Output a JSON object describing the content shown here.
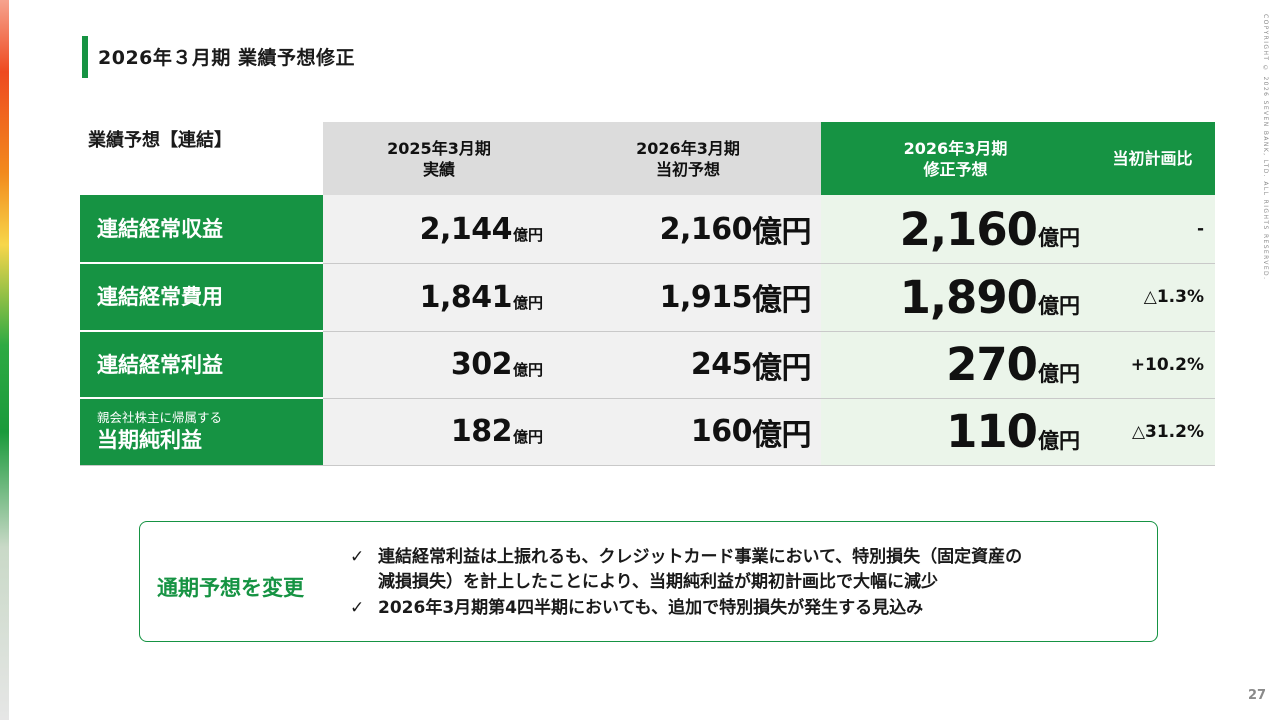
{
  "page": {
    "title": "2026年３月期 業績予想修正",
    "copyright": "COPYRIGHT © 2026 SEVEN BANK, LTD. ALL RIGHTS RESERVED.",
    "page_number": "27"
  },
  "table": {
    "caption": "業績予想【連結】",
    "headers": {
      "actual_2025": [
        "2025年3月期",
        "実績"
      ],
      "initial_2026": [
        "2026年3月期",
        "当初予想"
      ],
      "revised_2026": [
        "2026年3月期",
        "修正予想"
      ],
      "vs_initial": "当初計画比"
    },
    "unit": "億円",
    "rows": [
      {
        "label_sub": "",
        "label": "連結経常収益",
        "actual_2025": "2,144",
        "initial_2026": "2,160",
        "revised_2026": "2,160",
        "vs_initial": "-"
      },
      {
        "label_sub": "",
        "label": "連結経常費用",
        "actual_2025": "1,841",
        "initial_2026": "1,915",
        "revised_2026": "1,890",
        "vs_initial": "△1.3%"
      },
      {
        "label_sub": "",
        "label": "連結経常利益",
        "actual_2025": "302",
        "initial_2026": "245",
        "revised_2026": "270",
        "vs_initial": "+10.2%"
      },
      {
        "label_sub": "親会社株主に帰属する",
        "label": "当期純利益",
        "actual_2025": "182",
        "initial_2026": "160",
        "revised_2026": "110",
        "vs_initial": "△31.2%"
      }
    ]
  },
  "note": {
    "heading": "通期予想を変更",
    "check_mark": "✓",
    "bullets": [
      [
        "連結経常利益は上振れるも、クレジットカード事業において、特別損失（固定資産の",
        "減損損失）を計上したことにより、当期純利益が期初計画比で大幅に減少"
      ],
      [
        "2026年3月期第4四半期においても、追加で特別損失が発生する見込み"
      ]
    ]
  },
  "colors": {
    "brand_green": "#169343",
    "header_gray": "#dcdcdc",
    "cell_gray": "#f1f1f1",
    "cell_light_green": "#ebf5ea"
  }
}
